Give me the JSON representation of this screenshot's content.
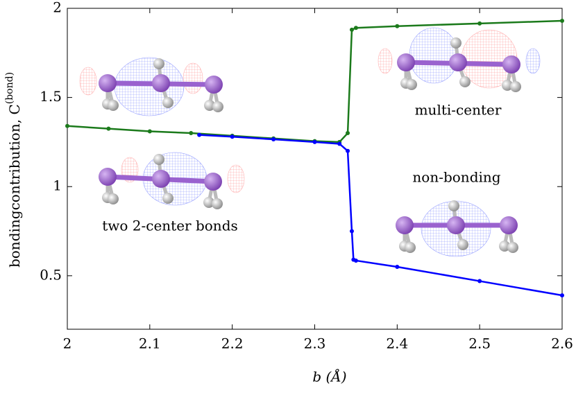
{
  "chart_data": {
    "type": "line",
    "xlabel": "b (Å)",
    "ylabel": {
      "text": "bondingcontribution, C",
      "superscript": "(bond)"
    },
    "xlim": [
      2,
      2.6
    ],
    "xticks": [
      2,
      2.1,
      2.2,
      2.3,
      2.4,
      2.5,
      2.6
    ],
    "ylim": [
      0.2,
      2
    ],
    "yticks": [
      0.5,
      1,
      1.5,
      2
    ],
    "series": [
      {
        "color": "#1b7a1b",
        "x": [
          2.0,
          2.05,
          2.1,
          2.15,
          2.2,
          2.25,
          2.3,
          2.33,
          2.34,
          2.345,
          2.35,
          2.4,
          2.5,
          2.6
        ],
        "values": [
          1.34,
          1.325,
          1.31,
          1.3,
          1.285,
          1.27,
          1.255,
          1.25,
          1.3,
          1.88,
          1.89,
          1.9,
          1.915,
          1.93
        ]
      },
      {
        "color": "#0000ff",
        "x": [
          2.16,
          2.2,
          2.25,
          2.3,
          2.33,
          2.34,
          2.345,
          2.347,
          2.35,
          2.4,
          2.5,
          2.6
        ],
        "values": [
          1.29,
          1.28,
          1.265,
          1.25,
          1.24,
          1.2,
          0.75,
          0.59,
          0.585,
          0.55,
          0.47,
          0.39
        ]
      }
    ],
    "annotations": [
      "two 2-center bonds",
      "multi-center",
      "non-bonding"
    ]
  }
}
